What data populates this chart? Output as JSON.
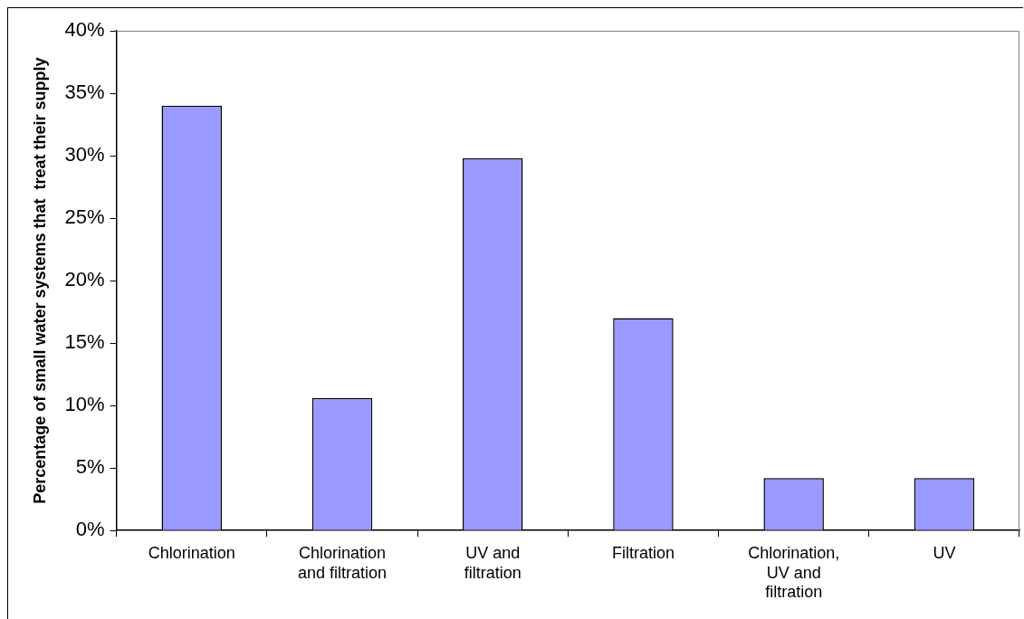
{
  "chart_data": {
    "type": "bar",
    "ylabel": "Percentage of small water systems that  treat their supply",
    "categories": [
      "Chlorination",
      "Chlorination and filtration",
      "UV and filtration",
      "Filtration",
      "Chlorination, UV and filtration",
      "UV"
    ],
    "values": [
      34,
      10.6,
      29.8,
      17,
      4.2,
      4.2
    ],
    "color": "#9999ff",
    "ylim": [
      0,
      40
    ],
    "yticks": [
      {
        "value": 0,
        "label": "0%"
      },
      {
        "value": 5,
        "label": "5%"
      },
      {
        "value": 10,
        "label": "10%"
      },
      {
        "value": 15,
        "label": "15%"
      },
      {
        "value": 20,
        "label": "20%"
      },
      {
        "value": 25,
        "label": "25%"
      },
      {
        "value": 30,
        "label": "30%"
      },
      {
        "value": 35,
        "label": "35%"
      },
      {
        "value": 40,
        "label": "40%"
      }
    ],
    "grid": false,
    "legend": false
  }
}
